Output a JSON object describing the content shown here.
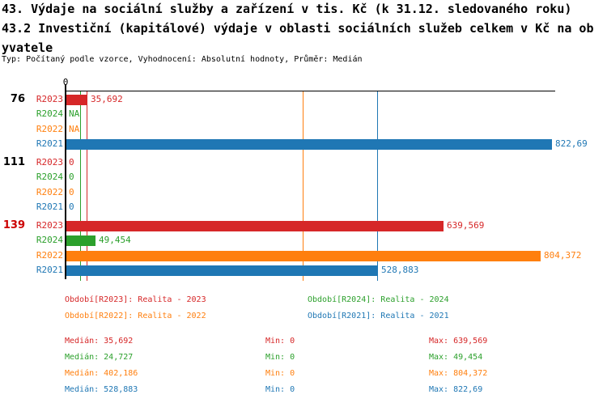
{
  "title_line1": "43. Výdaje na sociální služby a zařízení v tis. Kč (k 31.12. sledovaného roku)",
  "title_line2": "43.2 Investiční (kapitálové) výdaje v oblasti sociálních služeb celkem v Kč na ob",
  "title_line3": "yvatele",
  "subtitle": "Typ: Počítaný podle vzorce, Vyhodnocení: Absolutní hodnoty, Průměr: Medián",
  "colors": {
    "R2023": "#d62728",
    "R2024": "#2ca02c",
    "R2022": "#ff7f0e",
    "R2021": "#1f77b4",
    "axis": "#000000",
    "group_label": "#000000",
    "highlighted_group_label": "#cc0000"
  },
  "chart_data": {
    "type": "bar",
    "orientation": "horizontal",
    "title": "43.2 Investiční (kapitálové) výdaje v oblasti sociálních služeb celkem v Kč na obyvatele",
    "axis": {
      "zero_label": "0",
      "xmin": 0,
      "xmax_approx": 830000,
      "units_per_pixel": 1372,
      "grid": false
    },
    "series_order": [
      "R2023",
      "R2024",
      "R2022",
      "R2021"
    ],
    "groups": [
      {
        "label": "76",
        "highlighted": false,
        "rows": [
          {
            "series": "R2023",
            "value": 35692,
            "label": "35,692"
          },
          {
            "series": "R2024",
            "value": null,
            "label": "NA"
          },
          {
            "series": "R2022",
            "value": null,
            "label": "NA"
          },
          {
            "series": "R2021",
            "value": 822690,
            "label": "822,69"
          }
        ]
      },
      {
        "label": "111",
        "highlighted": false,
        "rows": [
          {
            "series": "R2023",
            "value": 0,
            "label": "0"
          },
          {
            "series": "R2024",
            "value": 0,
            "label": "0"
          },
          {
            "series": "R2022",
            "value": 0,
            "label": "0"
          },
          {
            "series": "R2021",
            "value": 0,
            "label": "0"
          }
        ]
      },
      {
        "label": "139",
        "highlighted": true,
        "rows": [
          {
            "series": "R2023",
            "value": 639569,
            "label": "639,569"
          },
          {
            "series": "R2024",
            "value": 49454,
            "label": "49,454"
          },
          {
            "series": "R2022",
            "value": 804372,
            "label": "804,372"
          },
          {
            "series": "R2021",
            "value": 528883,
            "label": "528,883"
          }
        ]
      }
    ],
    "median_lines": [
      {
        "series": "R2023",
        "value": 35692
      },
      {
        "series": "R2024",
        "value": 24727
      },
      {
        "series": "R2022",
        "value": 402186
      },
      {
        "series": "R2021",
        "value": 528883
      }
    ]
  },
  "legend": [
    {
      "series": "R2023",
      "text": "Období[R2023]: Realita - 2023"
    },
    {
      "series": "R2024",
      "text": "Období[R2024]: Realita - 2024"
    },
    {
      "series": "R2022",
      "text": "Období[R2022]: Realita - 2022"
    },
    {
      "series": "R2021",
      "text": "Období[R2021]: Realita - 2021"
    }
  ],
  "stats": [
    {
      "series": "R2023",
      "median": "Medián: 35,692",
      "min": "Min: 0",
      "max": "Max: 639,569"
    },
    {
      "series": "R2024",
      "median": "Medián: 24,727",
      "min": "Min: 0",
      "max": "Max: 49,454"
    },
    {
      "series": "R2022",
      "median": "Medián: 402,186",
      "min": "Min: 0",
      "max": "Max: 804,372"
    },
    {
      "series": "R2021",
      "median": "Medián: 528,883",
      "min": "Min: 0",
      "max": "Max: 822,69"
    }
  ]
}
